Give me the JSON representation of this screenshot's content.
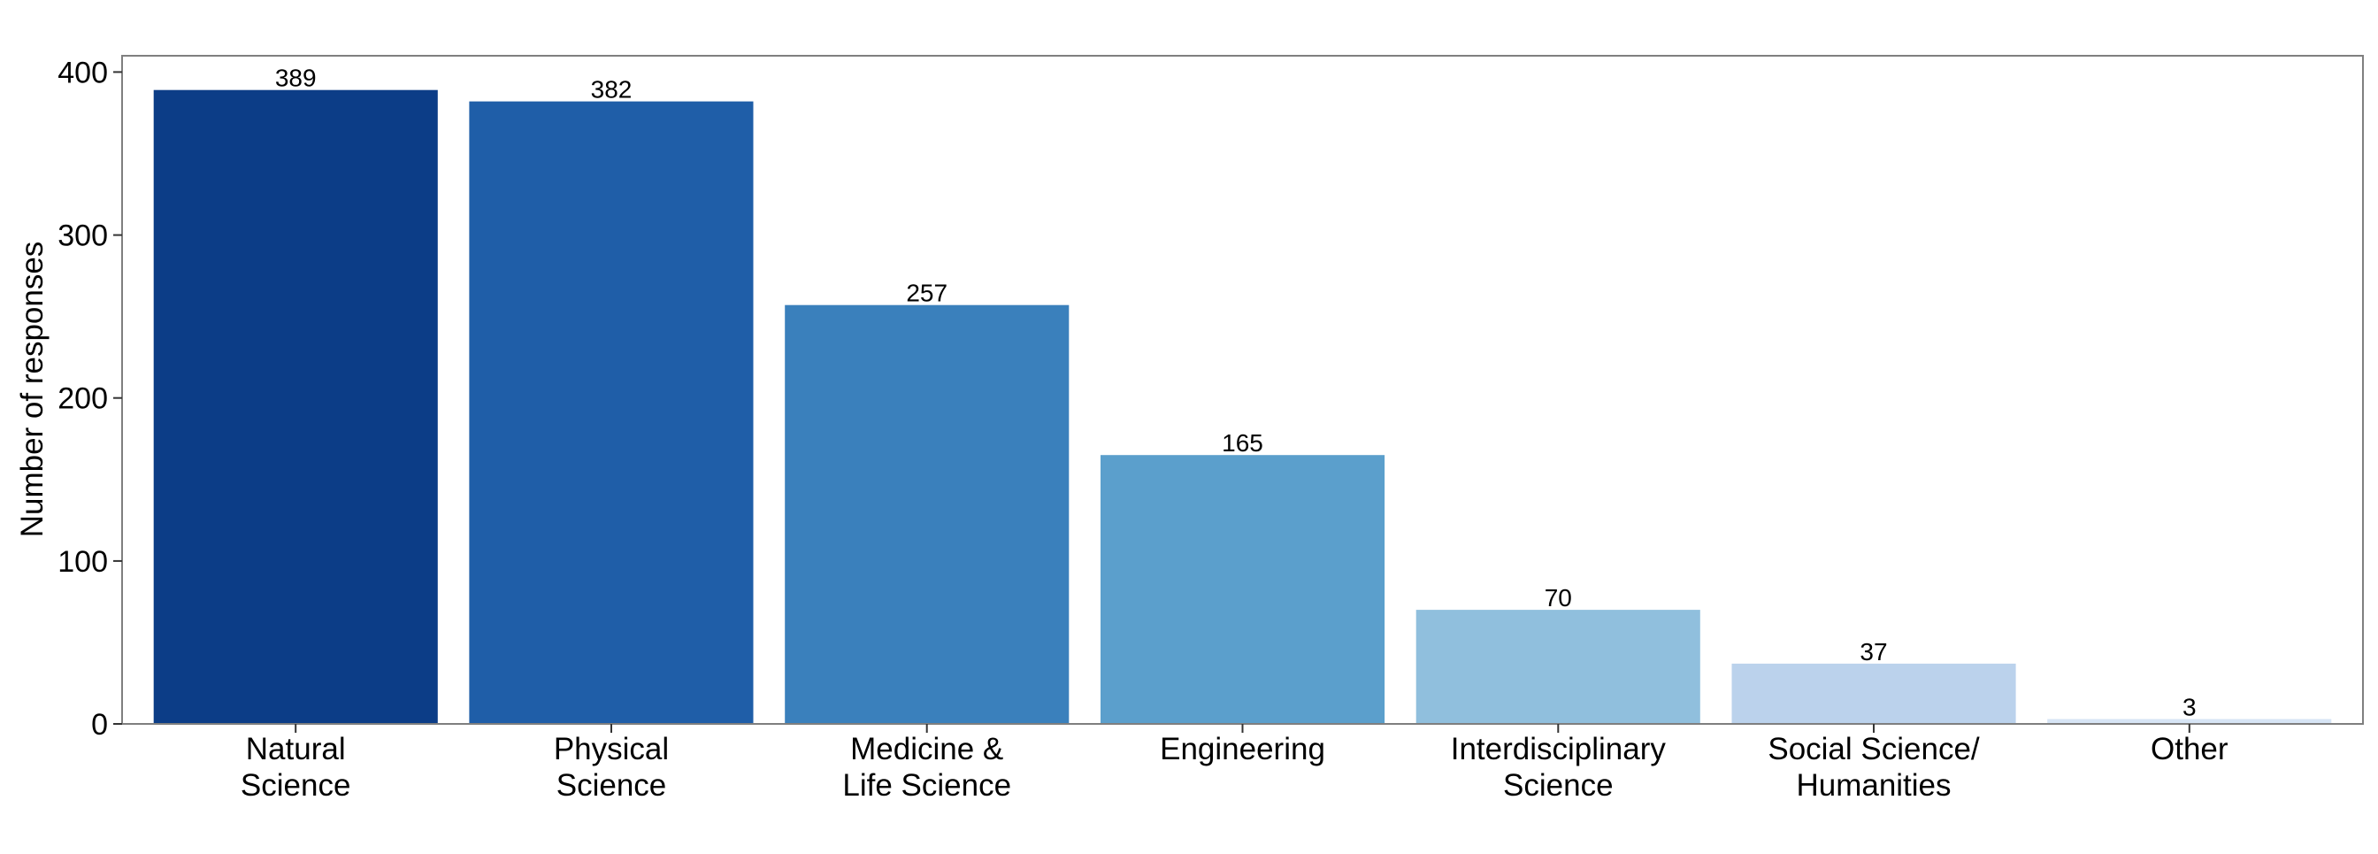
{
  "chart_data": {
    "type": "bar",
    "categories": [
      [
        "Natural",
        "Science"
      ],
      [
        "Physical",
        "Science"
      ],
      [
        "Medicine &",
        "Life Science"
      ],
      [
        "Engineering"
      ],
      [
        "Interdisciplinary",
        "Science"
      ],
      [
        "Social Science/",
        "Humanities"
      ],
      [
        "Other"
      ]
    ],
    "values": [
      389,
      382,
      257,
      165,
      70,
      37,
      3
    ],
    "data_labels": [
      "389",
      "382",
      "257",
      "165",
      "70",
      "37",
      "3"
    ],
    "colors": [
      "#0c3d87",
      "#1f5ea8",
      "#3a80bc",
      "#5b9fcc",
      "#90bfdd",
      "#bbd2ec",
      "#d7e5f5"
    ],
    "title": "",
    "xlabel": "",
    "ylabel": "Number of responses",
    "ylim": [
      0,
      410
    ],
    "yticks": [
      0,
      100,
      200,
      300,
      400
    ],
    "ytick_labels": [
      "0",
      "100",
      "200",
      "300",
      "400"
    ],
    "grid": false,
    "legend": "none"
  }
}
